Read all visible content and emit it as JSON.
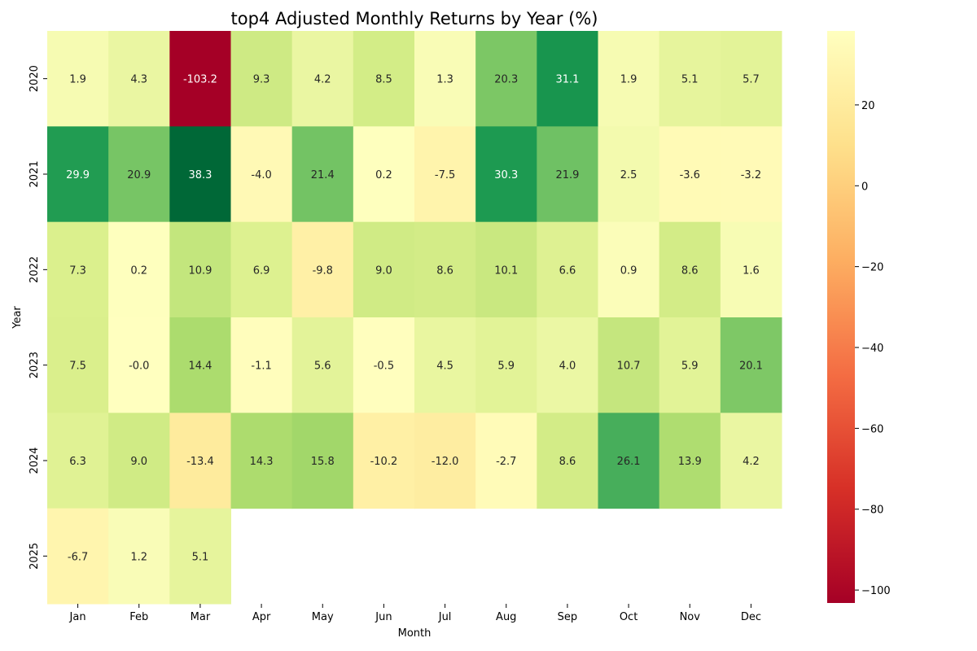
{
  "chart_data": {
    "type": "heatmap",
    "title": "top4 Adjusted Monthly Returns by Year (%)",
    "xlabel": "Month",
    "ylabel": "Year",
    "x_categories": [
      "Jan",
      "Feb",
      "Mar",
      "Apr",
      "May",
      "Jun",
      "Jul",
      "Aug",
      "Sep",
      "Oct",
      "Nov",
      "Dec"
    ],
    "y_categories": [
      "2020",
      "2021",
      "2022",
      "2023",
      "2024",
      "2025"
    ],
    "values": [
      [
        "1.9",
        "4.3",
        "-103.2",
        "9.3",
        "4.2",
        "8.5",
        "1.3",
        "20.3",
        "31.1",
        "1.9",
        "5.1",
        "5.7"
      ],
      [
        "29.9",
        "20.9",
        "38.3",
        "-4.0",
        "21.4",
        "0.2",
        "-7.5",
        "30.3",
        "21.9",
        "2.5",
        "-3.6",
        "-3.2"
      ],
      [
        "7.3",
        "0.2",
        "10.9",
        "6.9",
        "-9.8",
        "9.0",
        "8.6",
        "10.1",
        "6.6",
        "0.9",
        "8.6",
        "1.6"
      ],
      [
        "7.5",
        "-0.0",
        "14.4",
        "-1.1",
        "5.6",
        "-0.5",
        "4.5",
        "5.9",
        "4.0",
        "10.7",
        "5.9",
        "20.1"
      ],
      [
        "6.3",
        "9.0",
        "-13.4",
        "14.3",
        "15.8",
        "-10.2",
        "-12.0",
        "-2.7",
        "8.6",
        "26.1",
        "13.9",
        "4.2"
      ],
      [
        "-6.7",
        "1.2",
        "5.1",
        null,
        null,
        null,
        null,
        null,
        null,
        null,
        null,
        null
      ]
    ],
    "colormap": "RdYlGn",
    "colorbar": {
      "range": [
        -103.2,
        38.3
      ],
      "ticks": [
        "20",
        "0",
        "−20",
        "−40",
        "−60",
        "−80",
        "−100"
      ]
    },
    "legend": "colorbar-right",
    "grid": false
  }
}
